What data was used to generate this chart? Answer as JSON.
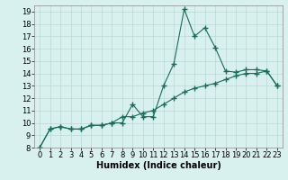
{
  "title": "",
  "xlabel": "Humidex (Indice chaleur)",
  "x_values": [
    0,
    1,
    2,
    3,
    4,
    5,
    6,
    7,
    8,
    9,
    10,
    11,
    12,
    13,
    14,
    15,
    16,
    17,
    18,
    19,
    20,
    21,
    22,
    23
  ],
  "series1": [
    8.0,
    9.5,
    9.7,
    9.5,
    9.5,
    9.8,
    9.8,
    10.0,
    10.0,
    11.5,
    10.5,
    10.5,
    13.0,
    14.8,
    19.2,
    17.0,
    17.7,
    16.1,
    14.2,
    14.1,
    14.3,
    14.3,
    14.2,
    13.0
  ],
  "series2": [
    8.0,
    9.5,
    9.7,
    9.5,
    9.5,
    9.8,
    9.8,
    10.0,
    10.5,
    10.5,
    10.8,
    11.0,
    11.5,
    12.0,
    12.5,
    12.8,
    13.0,
    13.2,
    13.5,
    13.8,
    14.0,
    14.0,
    14.2,
    13.0
  ],
  "line_color": "#1a6b5a",
  "bg_color": "#d8f0ee",
  "grid_color": "#b8d8d4",
  "ylim": [
    8,
    19.5
  ],
  "xlim": [
    -0.5,
    23.5
  ],
  "yticks": [
    8,
    9,
    10,
    11,
    12,
    13,
    14,
    15,
    16,
    17,
    18,
    19
  ],
  "xticks": [
    0,
    1,
    2,
    3,
    4,
    5,
    6,
    7,
    8,
    9,
    10,
    11,
    12,
    13,
    14,
    15,
    16,
    17,
    18,
    19,
    20,
    21,
    22,
    23
  ],
  "marker": "+",
  "markersize": 4,
  "linewidth": 0.8,
  "xlabel_fontsize": 7,
  "tick_fontsize": 6
}
